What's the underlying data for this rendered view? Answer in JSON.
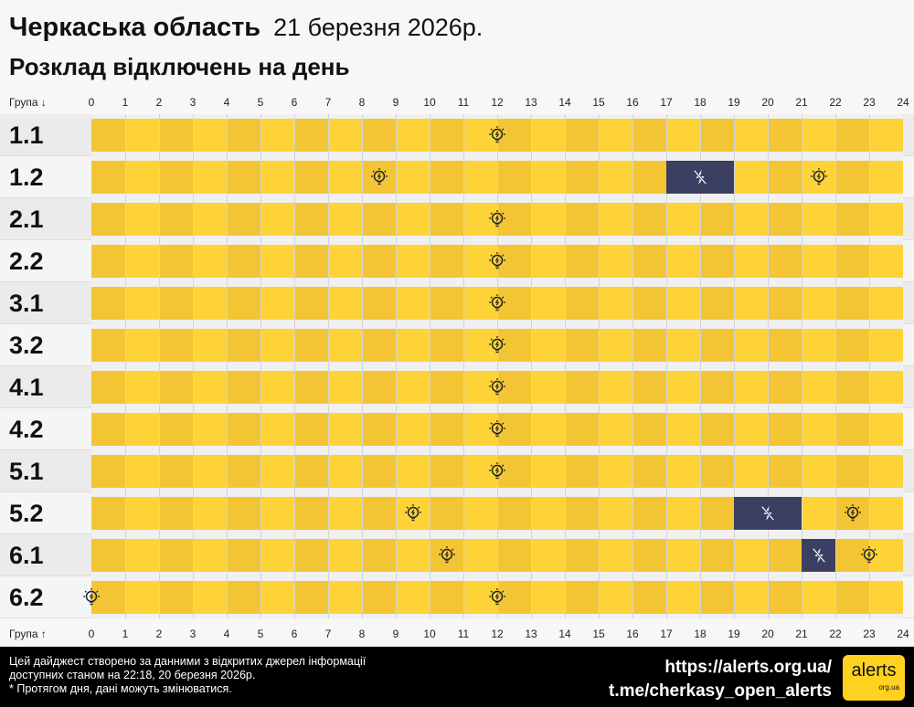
{
  "header": {
    "region": "Черкаська область",
    "date": "21 березня 2026р.",
    "subtitle": "Розклад відключень на день"
  },
  "axis": {
    "top_label": "Група ↓",
    "bottom_label": "Група ↑",
    "hours": [
      "0",
      "1",
      "2",
      "3",
      "4",
      "5",
      "6",
      "7",
      "8",
      "9",
      "10",
      "11",
      "12",
      "13",
      "14",
      "15",
      "16",
      "17",
      "18",
      "19",
      "20",
      "21",
      "22",
      "23",
      "24"
    ]
  },
  "colors": {
    "on_dark": "#f3c535",
    "on_light": "#fdd337",
    "outage": "#3b3f62"
  },
  "groups": [
    {
      "name": "1.1",
      "outages": [],
      "power_on_marks": [
        12
      ]
    },
    {
      "name": "1.2",
      "outages": [
        [
          17,
          19
        ]
      ],
      "power_on_marks": [
        8.5,
        21.5
      ]
    },
    {
      "name": "2.1",
      "outages": [],
      "power_on_marks": [
        12
      ]
    },
    {
      "name": "2.2",
      "outages": [],
      "power_on_marks": [
        12
      ]
    },
    {
      "name": "3.1",
      "outages": [],
      "power_on_marks": [
        12
      ]
    },
    {
      "name": "3.2",
      "outages": [],
      "power_on_marks": [
        12
      ]
    },
    {
      "name": "4.1",
      "outages": [],
      "power_on_marks": [
        12
      ]
    },
    {
      "name": "4.2",
      "outages": [],
      "power_on_marks": [
        12
      ]
    },
    {
      "name": "5.1",
      "outages": [],
      "power_on_marks": [
        12
      ]
    },
    {
      "name": "5.2",
      "outages": [
        [
          19,
          21
        ]
      ],
      "power_on_marks": [
        9.5,
        22.5
      ]
    },
    {
      "name": "6.1",
      "outages": [
        [
          21,
          22
        ]
      ],
      "power_on_marks": [
        10.5,
        23
      ]
    },
    {
      "name": "6.2",
      "outages": [],
      "power_on_marks": [
        0,
        12
      ]
    }
  ],
  "footer": {
    "line1": "Цей дайджест створено за данними з відкритих джерел інформації",
    "line2": "доступних станом на 22:18, 20 березня 2026р.",
    "line3": "* Протягом дня, дані можуть змінюватися.",
    "site": "https://alerts.org.ua/",
    "telegram": "t.me/cherkasy_open_alerts",
    "logo_text": "alerts",
    "logo_sub": "org.ua"
  }
}
